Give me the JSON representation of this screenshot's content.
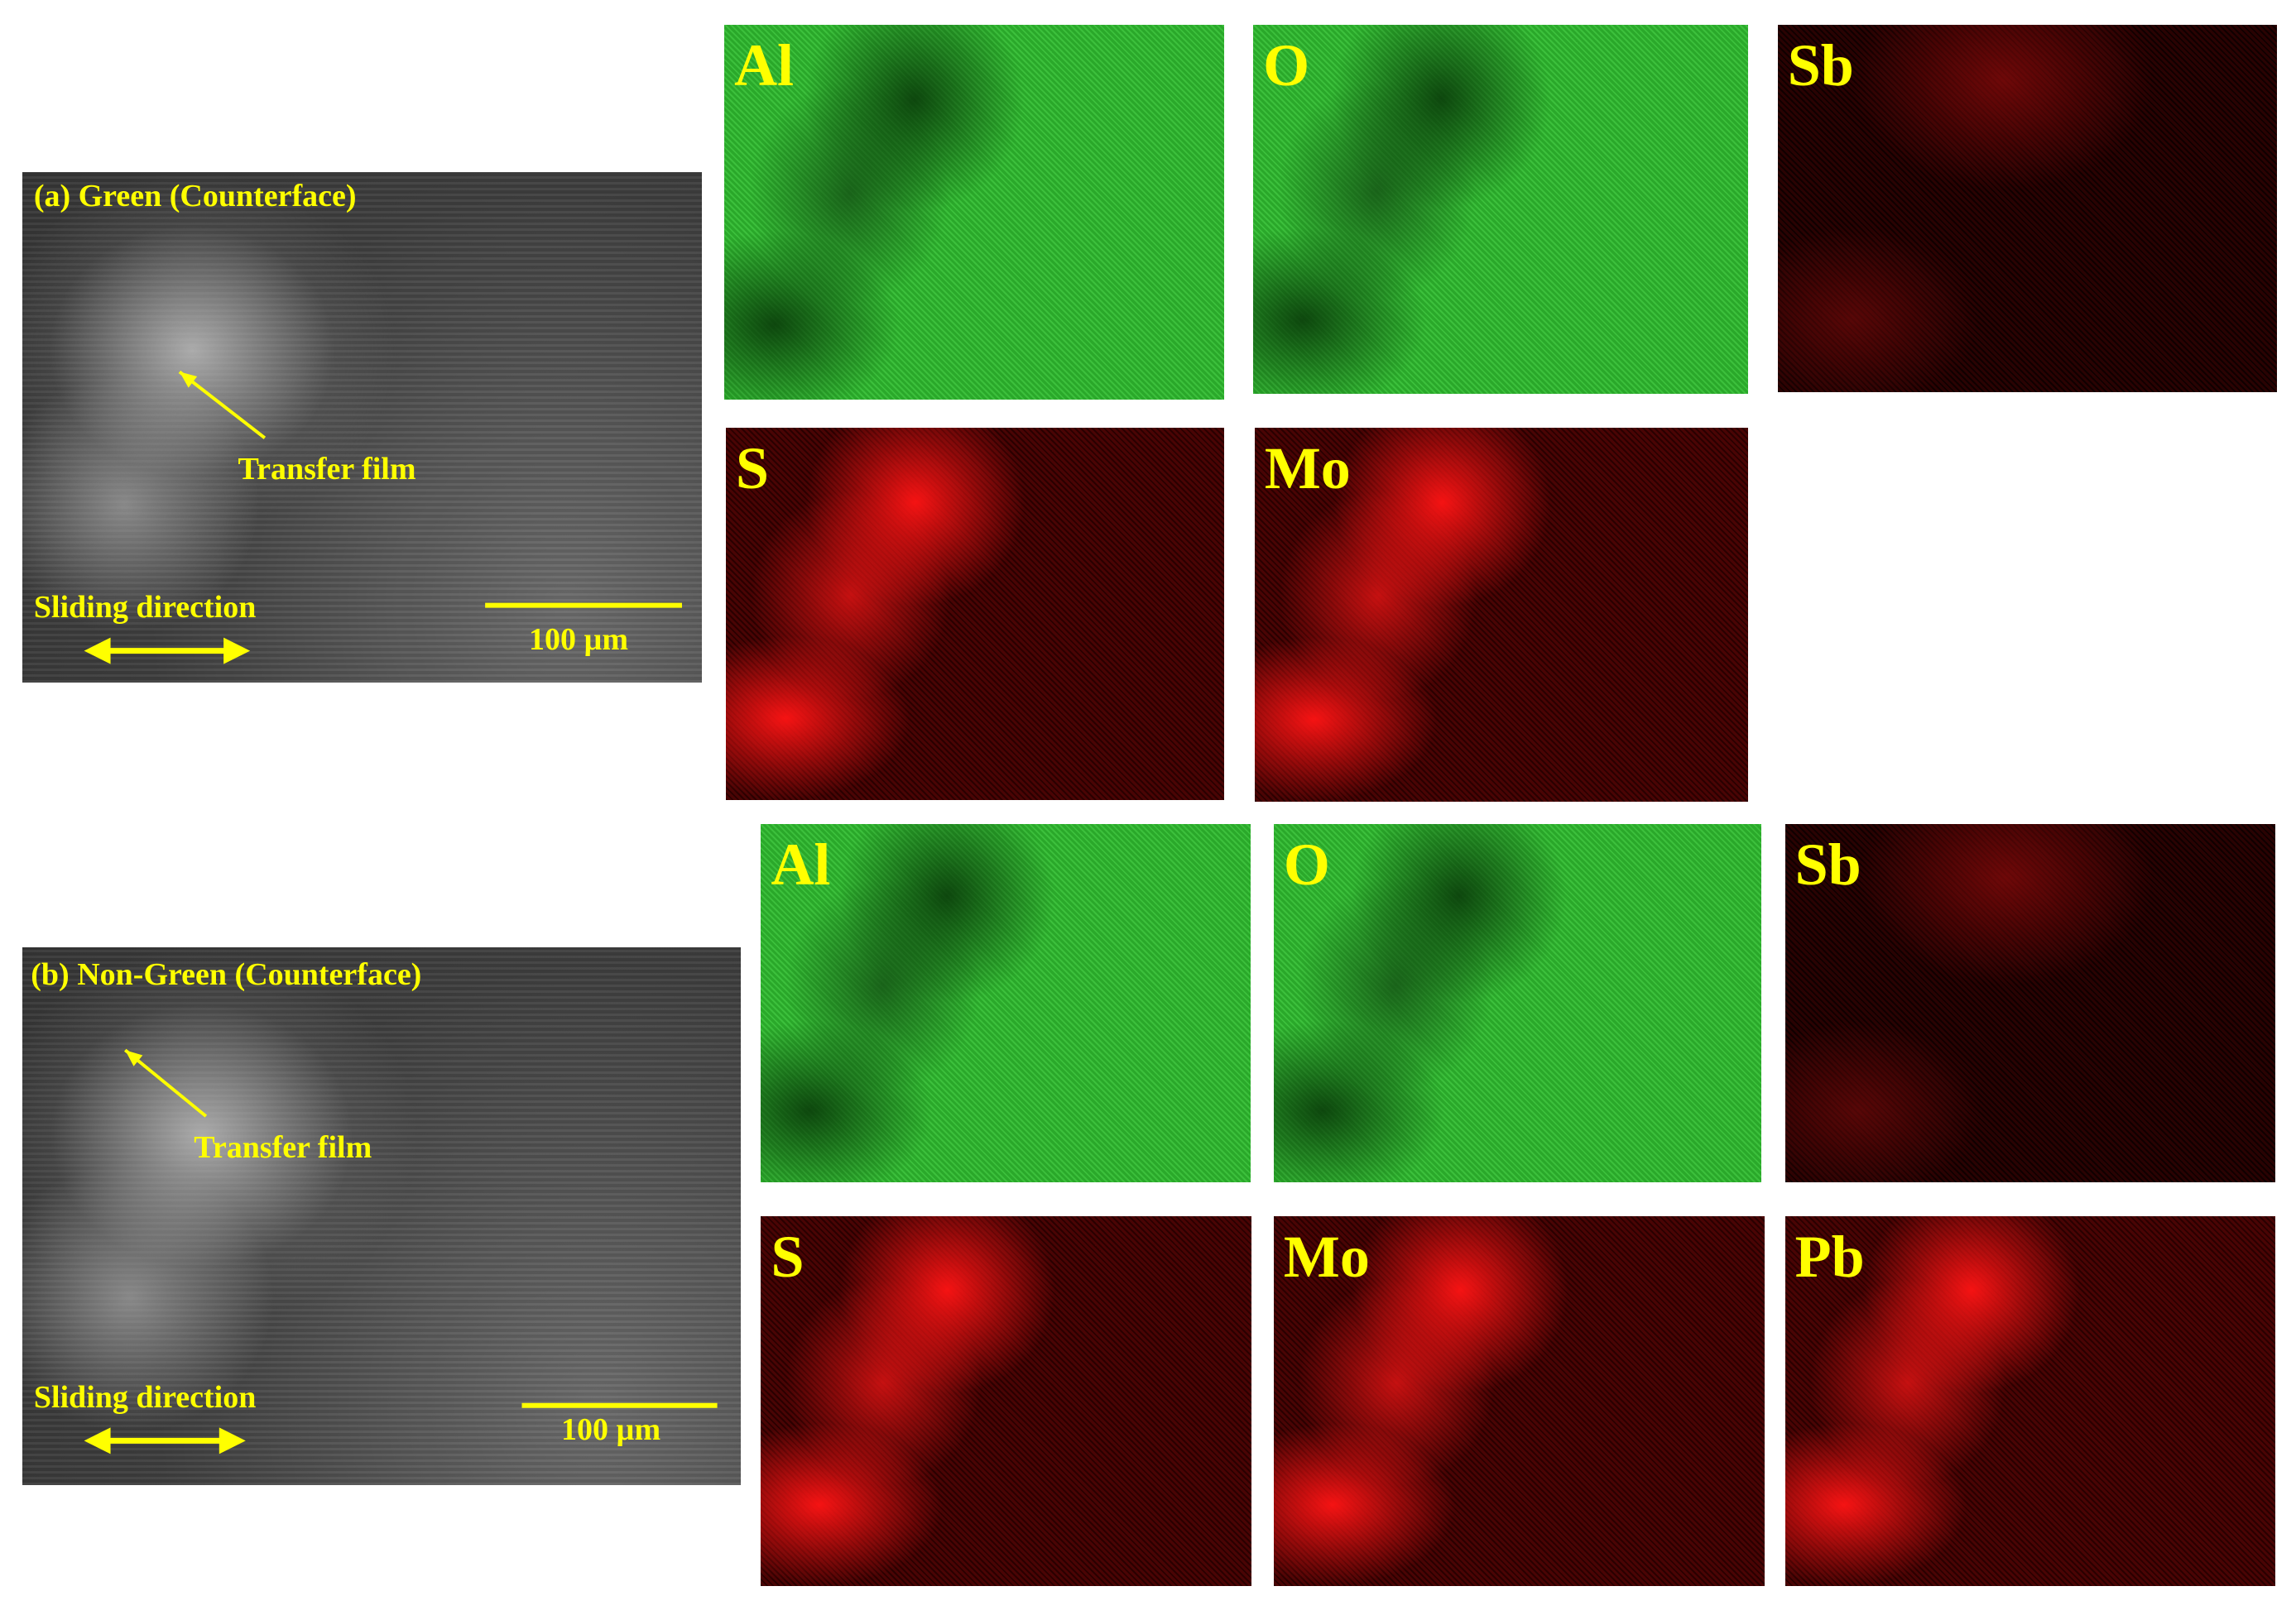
{
  "panels": [
    {
      "label": "(a) Green (Counterface)",
      "annotation": "Transfer film",
      "direction": "Sliding direction",
      "scale_bar": "100 µm",
      "maps": [
        "Al",
        "O",
        "Sb",
        "S",
        "Mo"
      ]
    },
    {
      "label": "(b) Non-Green (Counterface)",
      "annotation": "Transfer film",
      "direction": "Sliding direction",
      "scale_bar": "100 µm",
      "maps": [
        "Al",
        "O",
        "Sb",
        "S",
        "Mo",
        "Pb"
      ]
    }
  ]
}
